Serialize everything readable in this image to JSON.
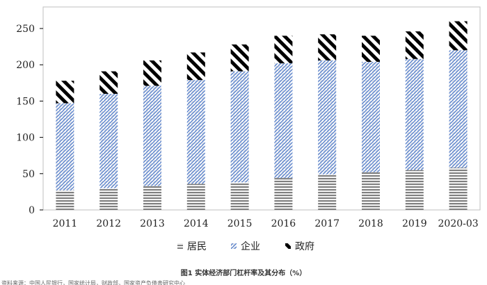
{
  "chart_data": {
    "type": "bar",
    "stacked": true,
    "categories": [
      "2011",
      "2012",
      "2013",
      "2014",
      "2015",
      "2016",
      "2017",
      "2018",
      "2019",
      "2020-03"
    ],
    "series": [
      {
        "name": "居民",
        "values": [
          27,
          30,
          33,
          36,
          38,
          44,
          49,
          52,
          55,
          58
        ],
        "color": "#7f7f7f",
        "pattern": "horizontal-lines"
      },
      {
        "name": "企业",
        "values": [
          120,
          130,
          138,
          143,
          153,
          158,
          157,
          152,
          153,
          162
        ],
        "color": "#4472c4",
        "pattern": "diagonal-lines"
      },
      {
        "name": "政府",
        "values": [
          31,
          31,
          35,
          38,
          37,
          38,
          36,
          36,
          38,
          40
        ],
        "color": "#000000",
        "pattern": "wide-diagonal"
      }
    ],
    "ylim": [
      0,
      250
    ],
    "yticks": [
      0,
      50,
      100,
      150,
      200,
      250
    ],
    "grid": false,
    "legend_position": "bottom"
  },
  "caption": "图1  实体经济部门杠杆率及其分布（%）",
  "source": "资料来源：中国人民银行，国家统计局，财政部，国家资产负债表研究中心"
}
